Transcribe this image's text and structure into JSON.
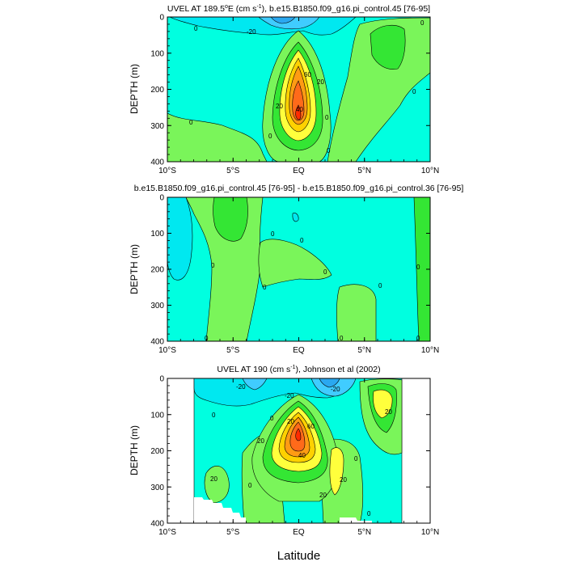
{
  "colors": {
    "cyan_light": "#00ffe0",
    "cyan": "#00e8f0",
    "sky": "#40ccff",
    "blue": "#2aa8f0",
    "green_light": "#7af55a",
    "green": "#34e634",
    "yellow_green": "#c8f532",
    "yellow": "#ffff3c",
    "gold": "#ffd100",
    "orange": "#ff9b14",
    "orange_red": "#ff6a1a",
    "red": "#ff2b00",
    "missing": "#ffffff"
  },
  "chart_data": [
    {
      "type": "contour",
      "title": "UVEL AT 189.5°E (cm s⁻¹), b.e15.B1850.f09_g16.pi_control.45 [76-95]",
      "title_parts": {
        "pre": "UVEL AT 189.5",
        "sup1": "o",
        "mid": "E (cm s",
        "sup2": "-1",
        "post": "), b.e15.B1850.f09_g16.pi_control.45 [76-95]"
      },
      "ylabel": "DEPTH (m)",
      "xlim": [
        -10,
        10
      ],
      "ylim": [
        400,
        0
      ],
      "y_ticks": [
        0,
        100,
        200,
        300,
        400
      ],
      "x_ticks": [
        "10°S",
        "5°S",
        "EQ",
        "5°N",
        "10°N"
      ],
      "contour_labels": [
        "-20",
        "0",
        "20",
        "40",
        "60",
        "20",
        "0",
        "0",
        "0",
        "0",
        "0",
        "0"
      ],
      "features": [
        {
          "kind": "jet",
          "lat": 0,
          "depth": 160,
          "max_cm_s": 80
        },
        {
          "kind": "westward_surface",
          "lat": -1,
          "depth": 0,
          "min_cm_s": -20
        }
      ]
    },
    {
      "type": "contour",
      "title": "b.e15.B1850.f09_g16.pi_control.45 [76-95] - b.e15.B1850.f09_g16.pi_control.36 [76-95]",
      "ylabel": "DEPTH (m)",
      "xlim": [
        -10,
        10
      ],
      "ylim": [
        400,
        0
      ],
      "y_ticks": [
        0,
        100,
        200,
        300,
        400
      ],
      "x_ticks": [
        "10°S",
        "5°S",
        "EQ",
        "5°N",
        "10°N"
      ],
      "contour_labels": [
        "0",
        "0",
        "0",
        "0",
        "0",
        "0",
        "0",
        "0",
        "0",
        "0"
      ]
    },
    {
      "type": "contour",
      "title": "UVEL AT 190 (cm s⁻¹), Johnson et al (2002)",
      "title_parts": {
        "pre": "UVEL AT 190 (cm s",
        "sup2": "-1",
        "post": "), Johnson et al (2002)"
      },
      "ylabel": "DEPTH (m)",
      "xlim": [
        -10,
        10
      ],
      "ylim": [
        400,
        0
      ],
      "y_ticks": [
        0,
        100,
        200,
        300,
        400
      ],
      "x_ticks": [
        "10°S",
        "5°S",
        "EQ",
        "5°N",
        "10°N"
      ],
      "xlabel": "Latitude",
      "contour_labels": [
        "-20",
        "-20",
        "-20",
        "20",
        "0",
        "40",
        "60",
        "20",
        "20",
        "20",
        "0",
        "0",
        "0",
        "0",
        "20",
        "20"
      ],
      "features": [
        {
          "kind": "jet",
          "lat": 0,
          "depth": 150,
          "max_cm_s": 80
        },
        {
          "kind": "data_gap",
          "region": "outside 8°S-8°N and bottom-left corner"
        }
      ]
    }
  ]
}
